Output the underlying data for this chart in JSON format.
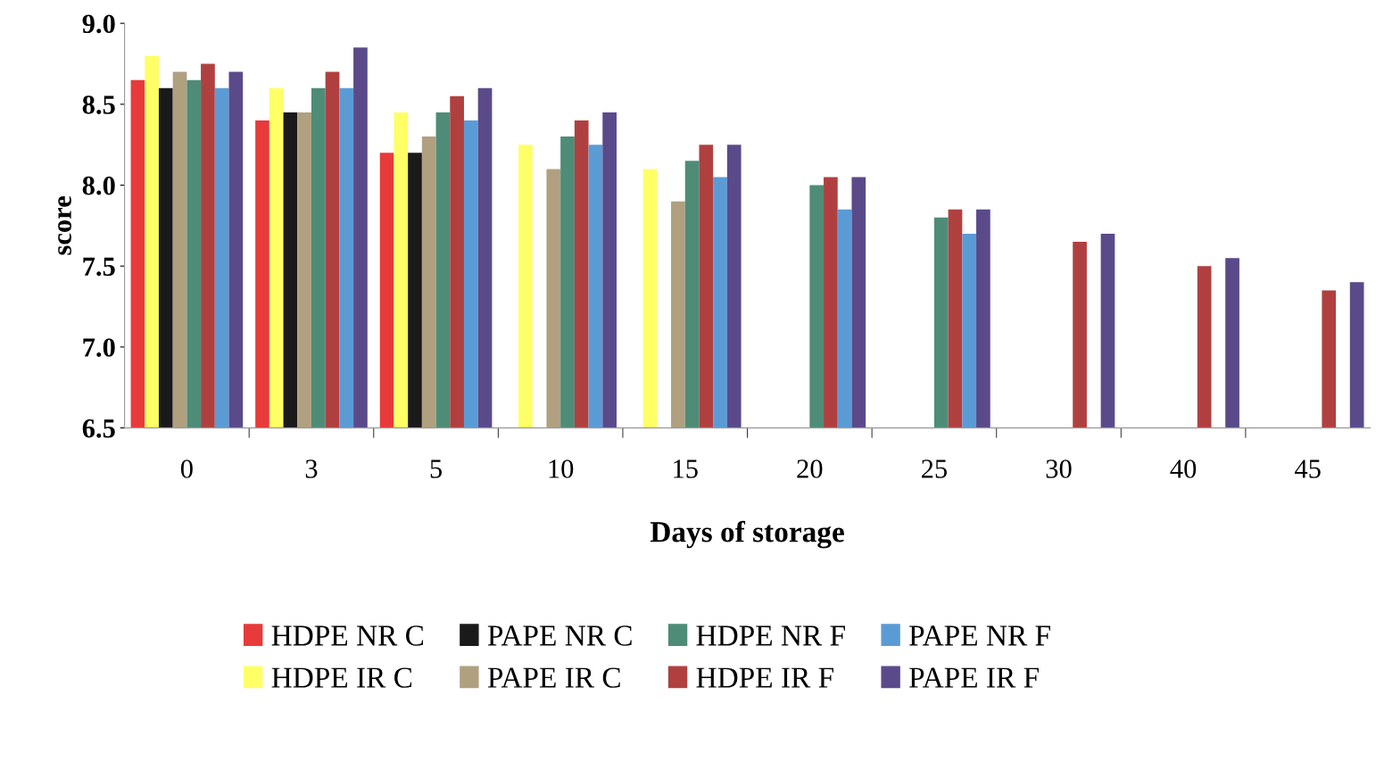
{
  "chart_data": {
    "type": "bar",
    "xlabel": "Days of storage",
    "ylabel": "score",
    "categories": [
      "0",
      "3",
      "5",
      "10",
      "15",
      "20",
      "25",
      "30",
      "40",
      "45"
    ],
    "series": [
      {
        "name": "HDPE NR C",
        "color": "#e83a3a",
        "values": [
          8.65,
          8.4,
          8.2,
          null,
          null,
          null,
          null,
          null,
          null,
          null
        ]
      },
      {
        "name": "HDPE IR C",
        "color": "#ffff66",
        "values": [
          8.8,
          8.6,
          8.45,
          8.25,
          8.1,
          null,
          null,
          null,
          null,
          null
        ]
      },
      {
        "name": "PAPE NR C",
        "color": "#1a1a1a",
        "values": [
          8.6,
          8.45,
          8.2,
          null,
          null,
          null,
          null,
          null,
          null,
          null
        ]
      },
      {
        "name": "PAPE IR C",
        "color": "#b0a080",
        "values": [
          8.7,
          8.45,
          8.3,
          8.1,
          7.9,
          null,
          null,
          null,
          null,
          null
        ]
      },
      {
        "name": "HDPE NR F",
        "color": "#4e8c78",
        "values": [
          8.65,
          8.6,
          8.45,
          8.3,
          8.15,
          8.0,
          7.8,
          null,
          null,
          null
        ]
      },
      {
        "name": "HDPE IR F",
        "color": "#b04040",
        "values": [
          8.75,
          8.7,
          8.55,
          8.4,
          8.25,
          8.05,
          7.85,
          7.65,
          7.5,
          7.35
        ]
      },
      {
        "name": "PAPE NR F",
        "color": "#5b9bd5",
        "values": [
          8.6,
          8.6,
          8.4,
          8.25,
          8.05,
          7.85,
          7.7,
          null,
          null,
          null
        ]
      },
      {
        "name": "PAPE IR F",
        "color": "#5a4a8a",
        "values": [
          8.7,
          8.85,
          8.6,
          8.45,
          8.25,
          8.05,
          7.85,
          7.7,
          7.55,
          7.4
        ]
      }
    ],
    "ylim": [
      6.5,
      9.0
    ],
    "yticks": [
      {
        "value": 6.5,
        "label": "6.5"
      },
      {
        "value": 7,
        "label": "7.0"
      },
      {
        "value": 7.5,
        "label": "7.5"
      },
      {
        "value": 8,
        "label": "8.0"
      },
      {
        "value": 8.5,
        "label": "8.5"
      },
      {
        "value": 9,
        "label": "9.0"
      }
    ],
    "grid": false,
    "legend": "bottom"
  }
}
